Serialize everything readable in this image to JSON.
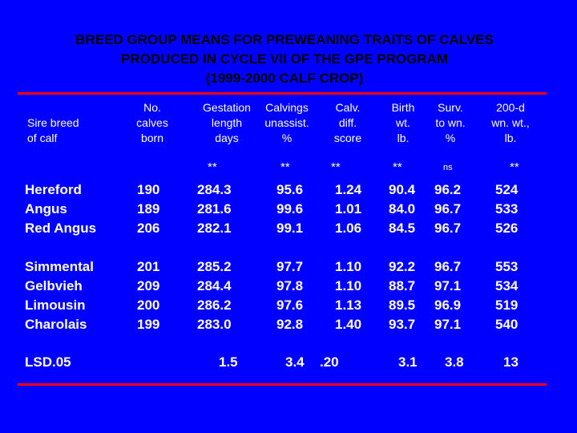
{
  "title": {
    "line1": "BREED GROUP MEANS FOR PREWEANING TRAITS OF CALVES",
    "line2": "PRODUCED IN CYCLE VII OF THE GPE PROGRAM",
    "line3": "(1999-2000 CALF CROP)"
  },
  "headers": {
    "sire": [
      "Sire breed",
      "of calf"
    ],
    "calves": [
      "No.",
      "calves",
      "born"
    ],
    "gestation": [
      "Gestation",
      "length",
      "days"
    ],
    "calvings": [
      "Calvings",
      "unassist.",
      "%"
    ],
    "calv_diff": [
      "Calv.",
      "diff.",
      "score"
    ],
    "birth": [
      "Birth",
      "wt.",
      "lb."
    ],
    "surv": [
      "Surv.",
      "to wn.",
      "%"
    ],
    "wean": [
      "200-d",
      "wn. wt.,",
      "lb."
    ]
  },
  "significance": {
    "gestation": "**",
    "calvings": "**",
    "calv_diff": "**",
    "birth": "**",
    "surv": "ns",
    "wean": "**"
  },
  "group1": {
    "breeds": [
      "Hereford",
      "Angus",
      "Red Angus"
    ],
    "calves": [
      "190",
      "189",
      "206"
    ],
    "gestation": [
      "284.3",
      "281.6",
      "282.1"
    ],
    "calvings": [
      "95.6",
      "99.6",
      "99.1"
    ],
    "calv_diff": [
      "1.24",
      "1.01",
      "1.06"
    ],
    "birth": [
      "90.4",
      "84.0",
      "84.5"
    ],
    "surv": [
      "96.2",
      "96.7",
      "96.7"
    ],
    "wean": [
      "524",
      "533",
      "526"
    ]
  },
  "group2": {
    "breeds": [
      "Simmental",
      "Gelbvieh",
      "Limousin",
      "Charolais"
    ],
    "calves": [
      "201",
      "209",
      "200",
      "199"
    ],
    "gestation": [
      "285.2",
      "284.4",
      "286.2",
      "283.0"
    ],
    "calvings": [
      "97.7",
      "97.8",
      "97.6",
      "92.8"
    ],
    "calv_diff": [
      "1.10",
      "1.10",
      "1.13",
      "1.40"
    ],
    "birth": [
      "92.2",
      "88.7",
      "89.5",
      "93.7"
    ],
    "surv": [
      "96.7",
      "97.1",
      "96.9",
      "97.1"
    ],
    "wean": [
      "553",
      "534",
      "519",
      "540"
    ]
  },
  "lsd": {
    "label": "LSD.05",
    "gestation": "1.5",
    "calvings": "3.4",
    "calv_diff": ".20",
    "birth": "3.1",
    "surv": "3.8",
    "wean": "13"
  },
  "colors": {
    "background": "#0000FF",
    "rule": "#FF0000",
    "title": "#000000",
    "text": "#FFFFFF"
  }
}
